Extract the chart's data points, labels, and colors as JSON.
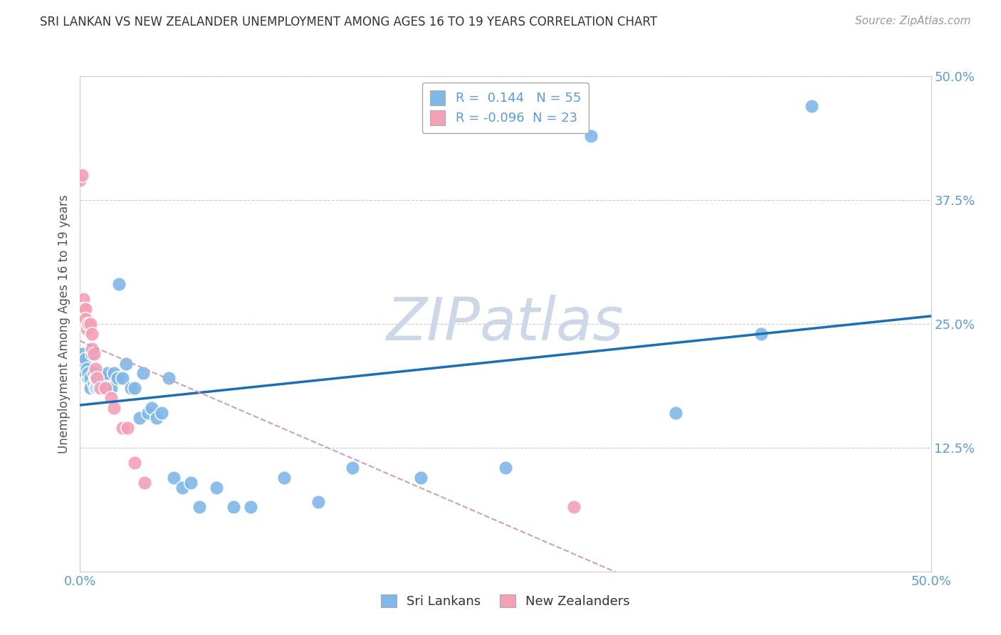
{
  "title": "SRI LANKAN VS NEW ZEALANDER UNEMPLOYMENT AMONG AGES 16 TO 19 YEARS CORRELATION CHART",
  "source": "Source: ZipAtlas.com",
  "ylabel": "Unemployment Among Ages 16 to 19 years",
  "xlim": [
    0.0,
    0.5
  ],
  "ylim": [
    0.0,
    0.5
  ],
  "xticks": [
    0.0,
    0.05,
    0.1,
    0.15,
    0.2,
    0.25,
    0.3,
    0.35,
    0.4,
    0.45,
    0.5
  ],
  "yticks": [
    0.0,
    0.125,
    0.25,
    0.375,
    0.5
  ],
  "ytick_labels": [
    "",
    "12.5%",
    "25.0%",
    "37.5%",
    "50.0%"
  ],
  "sri_lankan_R": 0.144,
  "sri_lankan_N": 55,
  "new_zealander_R": -0.096,
  "new_zealander_N": 23,
  "sri_lankan_color": "#7eb7e8",
  "new_zealander_color": "#f4a0b5",
  "regression_line_color_sl": "#1a6fb5",
  "regression_line_color_nz": "#d0a0b0",
  "watermark_color": "#ccd8e8",
  "background_color": "#ffffff",
  "sri_lankans_x": [
    0.001,
    0.002,
    0.003,
    0.003,
    0.004,
    0.005,
    0.005,
    0.006,
    0.006,
    0.007,
    0.008,
    0.008,
    0.009,
    0.009,
    0.01,
    0.01,
    0.01,
    0.011,
    0.012,
    0.013,
    0.014,
    0.015,
    0.016,
    0.016,
    0.018,
    0.02,
    0.022,
    0.023,
    0.025,
    0.027,
    0.03,
    0.032,
    0.035,
    0.037,
    0.04,
    0.042,
    0.045,
    0.048,
    0.052,
    0.055,
    0.06,
    0.065,
    0.07,
    0.08,
    0.09,
    0.1,
    0.12,
    0.14,
    0.16,
    0.2,
    0.25,
    0.3,
    0.35,
    0.4,
    0.43
  ],
  "sri_lankans_y": [
    0.22,
    0.21,
    0.215,
    0.2,
    0.205,
    0.195,
    0.2,
    0.195,
    0.185,
    0.22,
    0.19,
    0.2,
    0.185,
    0.195,
    0.19,
    0.195,
    0.185,
    0.185,
    0.19,
    0.185,
    0.195,
    0.19,
    0.185,
    0.2,
    0.185,
    0.2,
    0.195,
    0.29,
    0.195,
    0.21,
    0.185,
    0.185,
    0.155,
    0.2,
    0.16,
    0.165,
    0.155,
    0.16,
    0.195,
    0.095,
    0.085,
    0.09,
    0.065,
    0.085,
    0.065,
    0.065,
    0.095,
    0.07,
    0.105,
    0.095,
    0.105,
    0.44,
    0.16,
    0.24,
    0.47
  ],
  "new_zealanders_x": [
    0.0,
    0.001,
    0.002,
    0.002,
    0.003,
    0.003,
    0.004,
    0.005,
    0.006,
    0.007,
    0.007,
    0.008,
    0.009,
    0.01,
    0.012,
    0.015,
    0.018,
    0.02,
    0.025,
    0.028,
    0.032,
    0.038,
    0.29
  ],
  "new_zealanders_y": [
    0.395,
    0.4,
    0.275,
    0.265,
    0.265,
    0.255,
    0.245,
    0.25,
    0.25,
    0.24,
    0.225,
    0.22,
    0.205,
    0.195,
    0.185,
    0.185,
    0.175,
    0.165,
    0.145,
    0.145,
    0.11,
    0.09,
    0.065
  ]
}
